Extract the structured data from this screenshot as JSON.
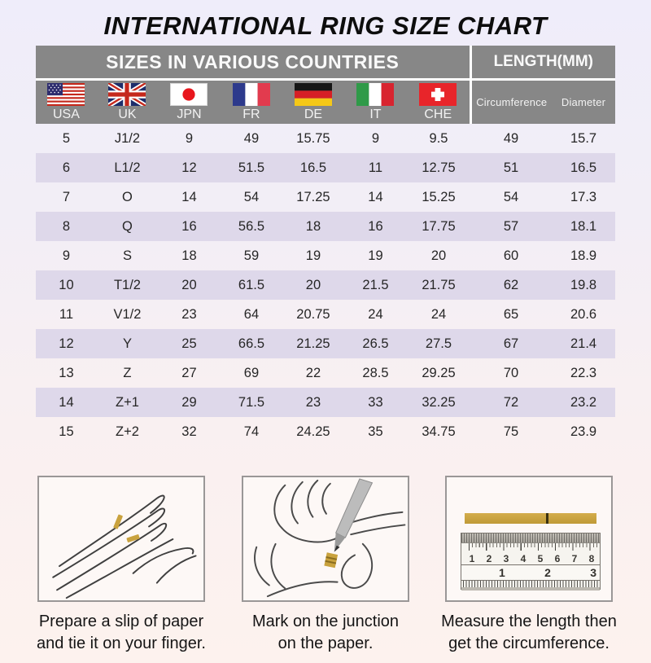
{
  "title": "INTERNATIONAL RING SIZE CHART",
  "colors": {
    "header_gray": "#878787",
    "header_text": "#ffffff",
    "row_shaded": "#ded8ea",
    "background_top": "#efedfa",
    "background_bottom": "#fdf2ee",
    "paper_strip_gold": "#c9a23e",
    "title_text": "#0d0d0d"
  },
  "table": {
    "section_headers": {
      "countries": "SIZES IN VARIOUS COUNTRIES",
      "length": "LENGTH(MM)"
    },
    "country_columns": [
      {
        "code": "USA",
        "flag": "usa-flag-icon"
      },
      {
        "code": "UK",
        "flag": "uk-flag-icon"
      },
      {
        "code": "JPN",
        "flag": "japan-flag-icon"
      },
      {
        "code": "FR",
        "flag": "france-flag-icon"
      },
      {
        "code": "DE",
        "flag": "germany-flag-icon"
      },
      {
        "code": "IT",
        "flag": "italy-flag-icon"
      },
      {
        "code": "CHE",
        "flag": "switzerland-flag-icon"
      }
    ],
    "length_columns": [
      "Circumference",
      "Diameter"
    ]
  },
  "chart_data": {
    "type": "table",
    "title": "INTERNATIONAL RING SIZE CHART",
    "columns": [
      "USA",
      "UK",
      "JPN",
      "FR",
      "DE",
      "IT",
      "CHE",
      "Circumference (mm)",
      "Diameter (mm)"
    ],
    "rows": [
      [
        "5",
        "J1/2",
        "9",
        "49",
        "15.75",
        "9",
        "9.5",
        "49",
        "15.7"
      ],
      [
        "6",
        "L1/2",
        "12",
        "51.5",
        "16.5",
        "11",
        "12.75",
        "51",
        "16.5"
      ],
      [
        "7",
        "O",
        "14",
        "54",
        "17.25",
        "14",
        "15.25",
        "54",
        "17.3"
      ],
      [
        "8",
        "Q",
        "16",
        "56.5",
        "18",
        "16",
        "17.75",
        "57",
        "18.1"
      ],
      [
        "9",
        "S",
        "18",
        "59",
        "19",
        "19",
        "20",
        "60",
        "18.9"
      ],
      [
        "10",
        "T1/2",
        "20",
        "61.5",
        "20",
        "21.5",
        "21.75",
        "62",
        "19.8"
      ],
      [
        "11",
        "V1/2",
        "23",
        "64",
        "20.75",
        "24",
        "24",
        "65",
        "20.6"
      ],
      [
        "12",
        "Y",
        "25",
        "66.5",
        "21.25",
        "26.5",
        "27.5",
        "67",
        "21.4"
      ],
      [
        "13",
        "Z",
        "27",
        "69",
        "22",
        "28.5",
        "29.25",
        "70",
        "22.3"
      ],
      [
        "14",
        "Z+1",
        "29",
        "71.5",
        "23",
        "33",
        "32.25",
        "72",
        "23.2"
      ],
      [
        "15",
        "Z+2",
        "32",
        "74",
        "24.25",
        "35",
        "34.75",
        "75",
        "23.9"
      ]
    ]
  },
  "instructions": [
    {
      "illustration": "hand-with-paper-strip",
      "caption_line1": "Prepare a slip of paper",
      "caption_line2": "and tie it on your finger."
    },
    {
      "illustration": "pen-marking-junction",
      "caption_line1": "Mark on the junction",
      "caption_line2": "on the paper."
    },
    {
      "illustration": "ruler-measuring-strip",
      "caption_line1": "Measure the length then",
      "caption_line2": "get the circumference."
    }
  ],
  "ruler": {
    "cm_labels": [
      "1",
      "2",
      "3",
      "4",
      "5",
      "6",
      "7",
      "8"
    ],
    "inch_labels": [
      "1",
      "2",
      "3"
    ]
  }
}
